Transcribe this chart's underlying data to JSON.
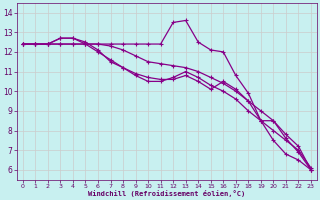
{
  "xlabel": "Windchill (Refroidissement éolien,°C)",
  "background_color": "#c8f0f0",
  "line_color": "#880088",
  "grid_color": "#cccccc",
  "x_ticks": [
    0,
    1,
    2,
    3,
    4,
    5,
    6,
    7,
    8,
    9,
    10,
    11,
    12,
    13,
    14,
    15,
    16,
    17,
    18,
    19,
    20,
    21,
    22,
    23
  ],
  "y_ticks": [
    6,
    7,
    8,
    9,
    10,
    11,
    12,
    13,
    14
  ],
  "ylim": [
    5.5,
    14.5
  ],
  "xlim": [
    -0.5,
    23.5
  ],
  "series": [
    [
      12.4,
      12.4,
      12.4,
      12.4,
      12.4,
      12.4,
      12.4,
      12.4,
      12.4,
      12.4,
      12.4,
      12.4,
      13.5,
      13.6,
      12.5,
      12.1,
      12.0,
      10.8,
      9.9,
      8.5,
      7.5,
      6.8,
      6.5,
      6.0
    ],
    [
      12.4,
      12.4,
      12.4,
      12.7,
      12.7,
      12.5,
      12.1,
      11.5,
      11.2,
      10.9,
      10.7,
      10.6,
      10.6,
      10.8,
      10.5,
      10.1,
      10.5,
      10.1,
      9.5,
      8.5,
      8.5,
      7.6,
      6.9,
      6.0
    ],
    [
      12.4,
      12.4,
      12.4,
      12.7,
      12.7,
      12.4,
      12.0,
      11.6,
      11.2,
      10.8,
      10.5,
      10.5,
      10.7,
      11.0,
      10.7,
      10.3,
      10.0,
      9.6,
      9.0,
      8.5,
      8.0,
      7.5,
      7.0,
      6.1
    ],
    [
      12.4,
      12.4,
      12.4,
      12.4,
      12.4,
      12.4,
      12.4,
      12.3,
      12.1,
      11.8,
      11.5,
      11.4,
      11.3,
      11.2,
      11.0,
      10.7,
      10.4,
      10.0,
      9.5,
      9.0,
      8.5,
      7.8,
      7.2,
      6.0
    ]
  ]
}
